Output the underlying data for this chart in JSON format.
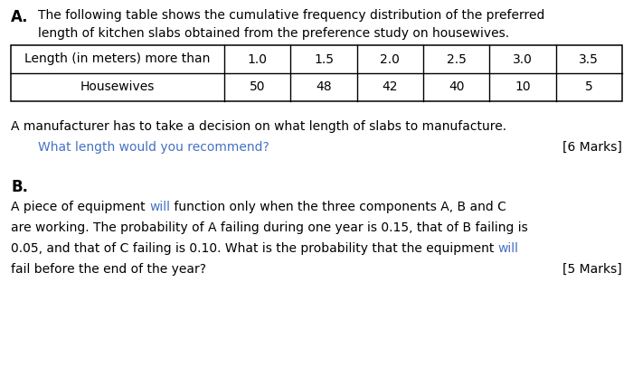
{
  "section_a_label": "A.",
  "section_a_line1": "The following table shows the cumulative frequency distribution of the preferred",
  "section_a_line2": "   length of kitchen slabs obtained from the preference study on housewives.",
  "table_header_col0": "Length (in meters) more than",
  "table_header_vals": [
    "1.0",
    "1.5",
    "2.0",
    "2.5",
    "3.0",
    "3.5"
  ],
  "table_row_label": "Housewives",
  "table_row_vals": [
    "50",
    "48",
    "42",
    "40",
    "10",
    "5"
  ],
  "section_a_text1": "A manufacturer has to take a decision on what length of slabs to manufacture.",
  "section_a_text2_blue": "What length would you recommend?",
  "section_a_marks": "[6 Marks]",
  "section_b_label": "B.",
  "section_b_line1_pre": "A piece of equipment ",
  "section_b_line1_blue": "will",
  "section_b_line1_post": " function only when the three components A, B and C",
  "section_b_line2": "are working. The probability of A failing during one year is 0.15, that of B failing is",
  "section_b_line3_pre": "0.05, and that of C failing is 0.10. What is the probability that the equipment ",
  "section_b_line3_blue": "will",
  "section_b_line4": "fail before the end of the year?",
  "section_b_marks": "[5 Marks]",
  "bg_color": "#ffffff",
  "text_color": "#000000",
  "blue_color": "#4472c4",
  "figsize": [
    7.0,
    4.16
  ],
  "dpi": 100
}
